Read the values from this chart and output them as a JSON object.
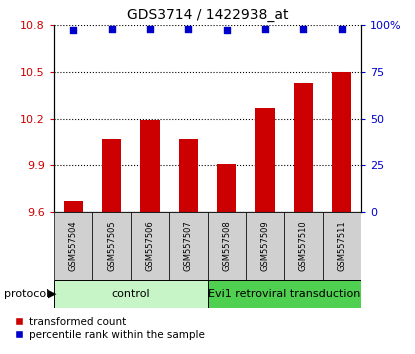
{
  "title": "GDS3714 / 1422938_at",
  "samples": [
    "GSM557504",
    "GSM557505",
    "GSM557506",
    "GSM557507",
    "GSM557508",
    "GSM557509",
    "GSM557510",
    "GSM557511"
  ],
  "red_values": [
    9.67,
    10.07,
    10.19,
    10.07,
    9.91,
    10.27,
    10.43,
    10.5
  ],
  "blue_values": [
    97,
    98,
    98,
    98,
    97,
    98,
    98,
    98
  ],
  "ylim_left": [
    9.6,
    10.8
  ],
  "ylim_right": [
    0,
    100
  ],
  "yticks_left": [
    9.6,
    9.9,
    10.2,
    10.5,
    10.8
  ],
  "yticks_right": [
    0,
    25,
    50,
    75,
    100
  ],
  "ytick_labels_right": [
    "0",
    "25",
    "50",
    "75",
    "100%"
  ],
  "control_samples": 4,
  "group1_label": "control",
  "group2_label": "Evi1 retroviral transduction",
  "group1_color": "#c8f5c8",
  "group2_color": "#50d050",
  "bar_color": "#cc0000",
  "dot_color": "#0000cc",
  "ylabel_left_color": "#cc0000",
  "ylabel_right_color": "#0000cc",
  "protocol_label": "protocol",
  "legend1": "transformed count",
  "legend2": "percentile rank within the sample",
  "background_color": "#ffffff",
  "sample_box_color": "#d0d0d0",
  "bar_width": 0.5
}
